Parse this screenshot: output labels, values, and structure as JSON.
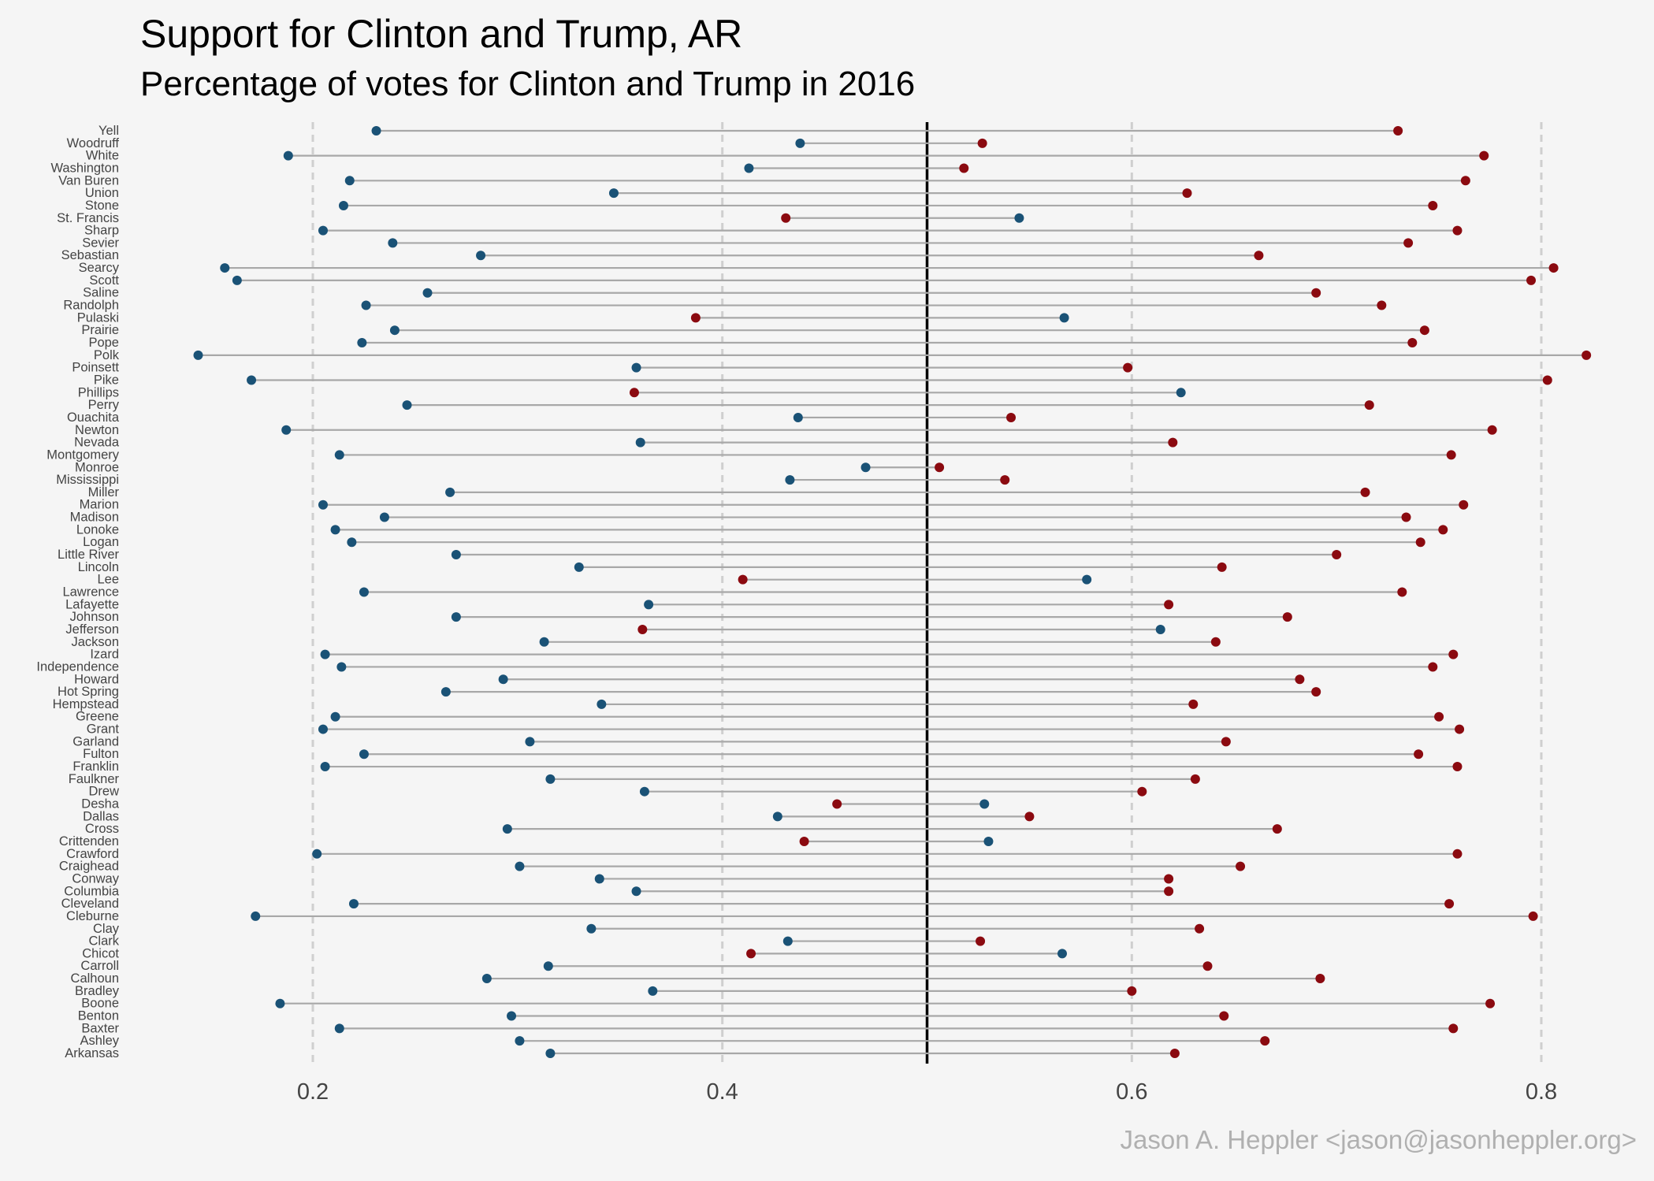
{
  "header": {
    "title": "Support for Clinton and Trump,  AR",
    "subtitle": "Percentage of votes for Clinton and Trump in 2016"
  },
  "caption": "Jason A. Heppler <jason@jasonheppler.org>",
  "colors": {
    "clinton": "#1a5276",
    "trump": "#8b0a10",
    "segment": "#a8a8a8",
    "midline": "#000000",
    "grid": "#cfcfcf",
    "background": "#f5f5f5"
  },
  "chart_data": {
    "type": "scatter",
    "subtype": "dumbbell",
    "title": "Support for Clinton and Trump,  AR",
    "subtitle": "Percentage of votes for Clinton and Trump in 2016",
    "xlabel": "",
    "ylabel": "",
    "xlim": [
      0.1,
      0.82
    ],
    "x_ticks": [
      0.2,
      0.4,
      0.6,
      0.8
    ],
    "x_tick_labels": [
      "0.2",
      "0.4",
      "0.6",
      "0.8"
    ],
    "reference_line": 0.5,
    "grid": "vertical dashed at major ticks",
    "categories": [
      "Yell",
      "Woodruff",
      "White",
      "Washington",
      "Van Buren",
      "Union",
      "Stone",
      "St. Francis",
      "Sharp",
      "Sevier",
      "Sebastian",
      "Searcy",
      "Scott",
      "Saline",
      "Randolph",
      "Pulaski",
      "Prairie",
      "Pope",
      "Polk",
      "Poinsett",
      "Pike",
      "Phillips",
      "Perry",
      "Ouachita",
      "Newton",
      "Nevada",
      "Montgomery",
      "Monroe",
      "Mississippi",
      "Miller",
      "Marion",
      "Madison",
      "Lonoke",
      "Logan",
      "Little River",
      "Lincoln",
      "Lee",
      "Lawrence",
      "Lafayette",
      "Johnson",
      "Jefferson",
      "Jackson",
      "Izard",
      "Independence",
      "Howard",
      "Hot Spring",
      "Hempstead",
      "Greene",
      "Grant",
      "Garland",
      "Fulton",
      "Franklin",
      "Faulkner",
      "Drew",
      "Desha",
      "Dallas",
      "Cross",
      "Crittenden",
      "Crawford",
      "Craighead",
      "Conway",
      "Columbia",
      "Cleveland",
      "Cleburne",
      "Clay",
      "Clark",
      "Chicot",
      "Carroll",
      "Calhoun",
      "Bradley",
      "Boone",
      "Benton",
      "Baxter",
      "Ashley",
      "Arkansas"
    ],
    "series": [
      {
        "name": "Clinton",
        "values": [
          0.231,
          0.438,
          0.188,
          0.413,
          0.218,
          0.347,
          0.215,
          0.545,
          0.205,
          0.239,
          0.282,
          0.157,
          0.163,
          0.256,
          0.226,
          0.567,
          0.24,
          0.224,
          0.144,
          0.358,
          0.17,
          0.624,
          0.246,
          0.437,
          0.187,
          0.36,
          0.213,
          0.47,
          0.433,
          0.267,
          0.205,
          0.235,
          0.211,
          0.219,
          0.27,
          0.33,
          0.578,
          0.225,
          0.364,
          0.27,
          0.614,
          0.313,
          0.206,
          0.214,
          0.293,
          0.265,
          0.341,
          0.211,
          0.205,
          0.306,
          0.225,
          0.206,
          0.316,
          0.362,
          0.528,
          0.427,
          0.295,
          0.53,
          0.202,
          0.301,
          0.34,
          0.358,
          0.22,
          0.172,
          0.336,
          0.432,
          0.566,
          0.315,
          0.285,
          0.366,
          0.184,
          0.297,
          0.213,
          0.301,
          0.316
        ]
      },
      {
        "name": "Trump",
        "values": [
          0.73,
          0.527,
          0.772,
          0.518,
          0.763,
          0.627,
          0.747,
          0.431,
          0.759,
          0.735,
          0.662,
          0.806,
          0.795,
          0.69,
          0.722,
          0.387,
          0.743,
          0.737,
          0.822,
          0.598,
          0.803,
          0.357,
          0.716,
          0.541,
          0.776,
          0.62,
          0.756,
          0.506,
          0.538,
          0.714,
          0.762,
          0.734,
          0.752,
          0.741,
          0.7,
          0.644,
          0.41,
          0.732,
          0.618,
          0.676,
          0.361,
          0.641,
          0.757,
          0.747,
          0.682,
          0.69,
          0.63,
          0.75,
          0.76,
          0.646,
          0.74,
          0.759,
          0.631,
          0.605,
          0.456,
          0.55,
          0.671,
          0.44,
          0.759,
          0.653,
          0.618,
          0.618,
          0.755,
          0.796,
          0.633,
          0.526,
          0.414,
          0.637,
          0.692,
          0.6,
          0.775,
          0.645,
          0.757,
          0.665,
          0.621
        ]
      }
    ]
  }
}
